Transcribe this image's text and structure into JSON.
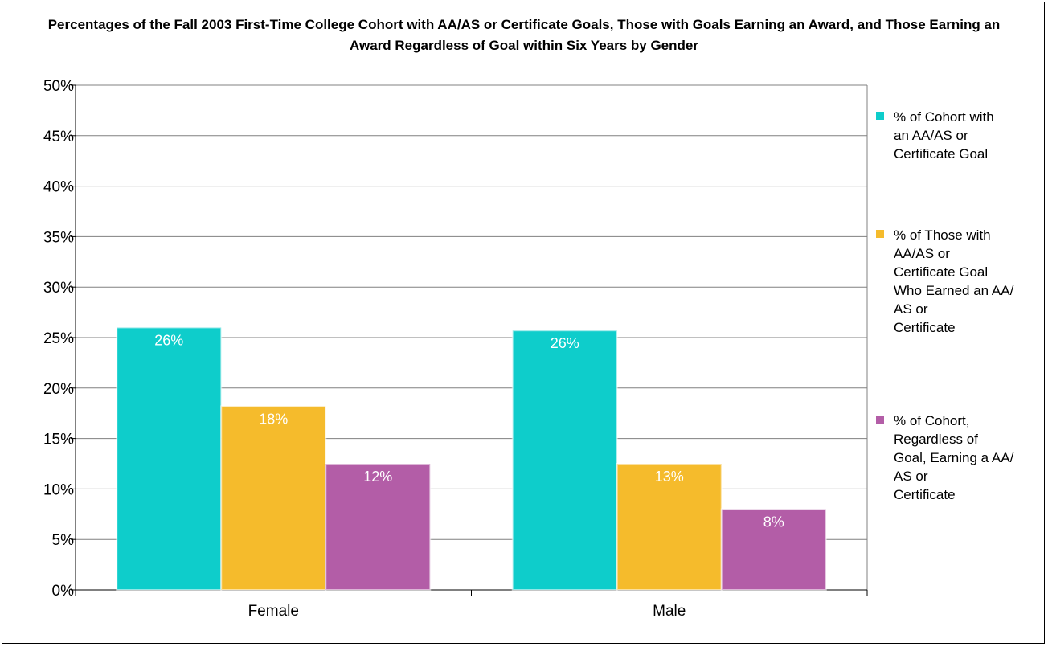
{
  "chart_data": {
    "type": "bar",
    "title": "Percentages of the Fall 2003 First-Time College Cohort with AA/AS or Certificate Goals, Those with Goals Earning an Award, and Those Earning an Award Regardless of Goal within Six Years by Gender",
    "categories": [
      "Female",
      "Male"
    ],
    "series": [
      {
        "name": "% of Cohort with an AA/AS or Certificate Goal",
        "values": [
          26,
          25.7
        ],
        "labels": [
          "26%",
          "26%"
        ],
        "color": "#0ECDCB"
      },
      {
        "name": "% of Those with AA/AS or Certificate Goal Who Earned an AA/AS or Certificate",
        "values": [
          18.2,
          12.5
        ],
        "labels": [
          "18%",
          "13%"
        ],
        "color": "#F5BB2C"
      },
      {
        "name": "% of Cohort, Regardless of Goal, Earning a AA/AS or Certificate",
        "values": [
          12.5,
          8
        ],
        "labels": [
          "12%",
          "8%"
        ],
        "color": "#B35DA7"
      }
    ],
    "ylim": [
      0,
      50
    ],
    "yticks": [
      "0%",
      "5%",
      "10%",
      "15%",
      "20%",
      "25%",
      "30%",
      "35%",
      "40%",
      "45%",
      "50%"
    ],
    "xlabel": "",
    "ylabel": "",
    "grid": true,
    "legend_position": "right"
  },
  "legend": {
    "items": [
      {
        "text": "% of Cohort with\nan AA/AS or\nCertificate Goal",
        "color": "#0ECDCB"
      },
      {
        "text": "% of Those with\nAA/AS or\nCertificate Goal\nWho Earned an AA/\nAS or\nCertificate",
        "color": "#F5BB2C"
      },
      {
        "text": "% of Cohort,\nRegardless of\nGoal, Earning a AA/\nAS or\nCertificate",
        "color": "#B35DA7"
      }
    ]
  }
}
